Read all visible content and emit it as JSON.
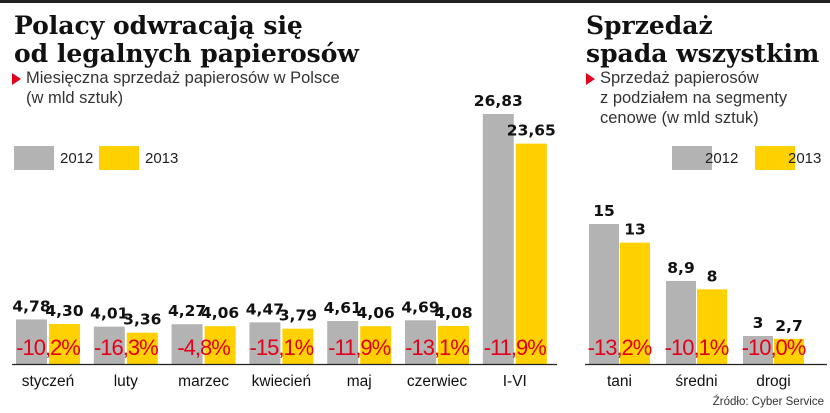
{
  "colors": {
    "y2012": "#b3b3b3",
    "y2013": "#ffd100",
    "pct": "#e2001a",
    "axis": "#222222"
  },
  "left": {
    "title": "Polacy odwracają się\nod legalnych papierosów",
    "subtitle": "Miesięczna sprzedaż papierosów w Polsce\n(w mld sztuk)",
    "legend": [
      "2012",
      "2013"
    ]
  },
  "right": {
    "title": "Sprzedaż\nspada wszystkim",
    "subtitle": "Sprzedaż papierosów\nz podziałem na segmenty\ncenowe (w mld sztuk)",
    "legend": [
      "2012",
      "2013"
    ]
  },
  "source": "Źródło: Cyber Service",
  "chart_data": [
    {
      "type": "bar",
      "title": "Polacy odwracają się od legalnych papierosów",
      "subtitle": "Miesięczna sprzedaż papierosów w Polsce (w mld sztuk)",
      "categories": [
        "styczeń",
        "luty",
        "marzec",
        "kwiecień",
        "maj",
        "czerwiec",
        "I-VI"
      ],
      "series": [
        {
          "name": "2012",
          "values": [
            4.78,
            4.01,
            4.27,
            4.47,
            4.61,
            4.69,
            26.83
          ]
        },
        {
          "name": "2013",
          "values": [
            4.3,
            3.36,
            4.06,
            3.79,
            4.06,
            4.08,
            23.65
          ]
        }
      ],
      "labels_2012": [
        "4,78",
        "4,01",
        "4,27",
        "4,47",
        "4,61",
        "4,69",
        "26,83"
      ],
      "labels_2013": [
        "4,30",
        "3,36",
        "4,06",
        "3,79",
        "4,06",
        "4,08",
        "23,65"
      ],
      "change_labels": [
        "-10,2%",
        "-16,3%",
        "-4,8%",
        "-15,1%",
        "-11,9%",
        "-13,1%",
        "-11,9%"
      ],
      "ylim": [
        0,
        28
      ],
      "grid": false,
      "legend_position": "top-left"
    },
    {
      "type": "bar",
      "title": "Sprzedaż spada wszystkim",
      "subtitle": "Sprzedaż papierosów z podziałem na segmenty cenowe (w mld sztuk)",
      "categories": [
        "tani",
        "średni",
        "drogi"
      ],
      "series": [
        {
          "name": "2012",
          "values": [
            15,
            8.9,
            3
          ]
        },
        {
          "name": "2013",
          "values": [
            13,
            8,
            2.7
          ]
        }
      ],
      "labels_2012": [
        "15",
        "8,9",
        "3"
      ],
      "labels_2013": [
        "13",
        "8",
        "2,7"
      ],
      "change_labels": [
        "-13,2%",
        "-10,1%",
        "-10,0%"
      ],
      "ylim": [
        0,
        16
      ],
      "grid": false,
      "legend_position": "top-right"
    }
  ]
}
